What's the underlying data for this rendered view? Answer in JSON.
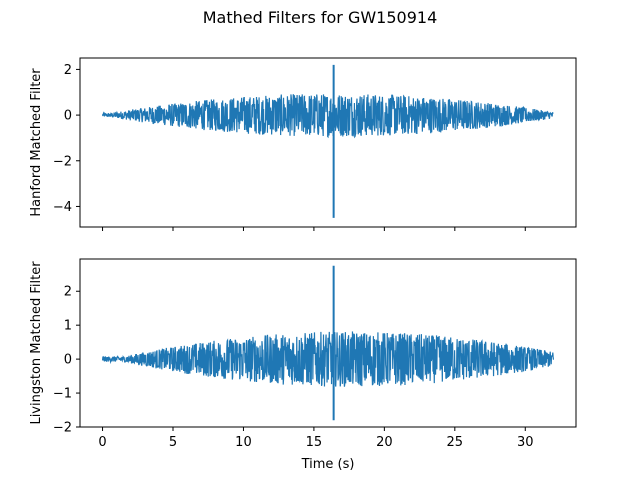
{
  "figure": {
    "title": "Mathed Filters for GW150914"
  },
  "chart_data": [
    {
      "type": "line",
      "ylabel": "Hanford Matched Filter",
      "xlabel": "",
      "xlim": [
        -1.6,
        33.6
      ],
      "ylim": [
        -4.9,
        2.5
      ],
      "xticks": [
        0,
        5,
        10,
        15,
        20,
        25,
        30
      ],
      "xtick_labels_shown": false,
      "yticks": [
        -4,
        -2,
        0,
        2
      ],
      "ytick_labels": [
        "−4",
        "−2",
        "0",
        "2"
      ],
      "color": "#1f77b4",
      "series": [
        {
          "x_range": [
            0,
            32
          ],
          "envelope_peak": 0.95,
          "envelope_center": 16.5,
          "spike_time": 16.4,
          "spike_max": 2.2,
          "spike_min": -4.5
        }
      ],
      "grid": false
    },
    {
      "type": "line",
      "ylabel": "Livingston Matched Filter",
      "xlabel": "Time (s)",
      "xlim": [
        -1.6,
        33.6
      ],
      "ylim": [
        -2.0,
        2.95
      ],
      "xticks": [
        0,
        5,
        10,
        15,
        20,
        25,
        30
      ],
      "xtick_labels": [
        "0",
        "5",
        "10",
        "15",
        "20",
        "25",
        "30"
      ],
      "xtick_labels_shown": true,
      "yticks": [
        -2,
        -1,
        0,
        1,
        2
      ],
      "ytick_labels": [
        "−2",
        "−1",
        "0",
        "1",
        "2"
      ],
      "color": "#1f77b4",
      "series": [
        {
          "x_range": [
            0,
            32
          ],
          "envelope_peak": 0.8,
          "envelope_center": 17.5,
          "spike_time": 16.4,
          "spike_max": 2.75,
          "spike_min": -1.8
        }
      ],
      "grid": false
    }
  ]
}
